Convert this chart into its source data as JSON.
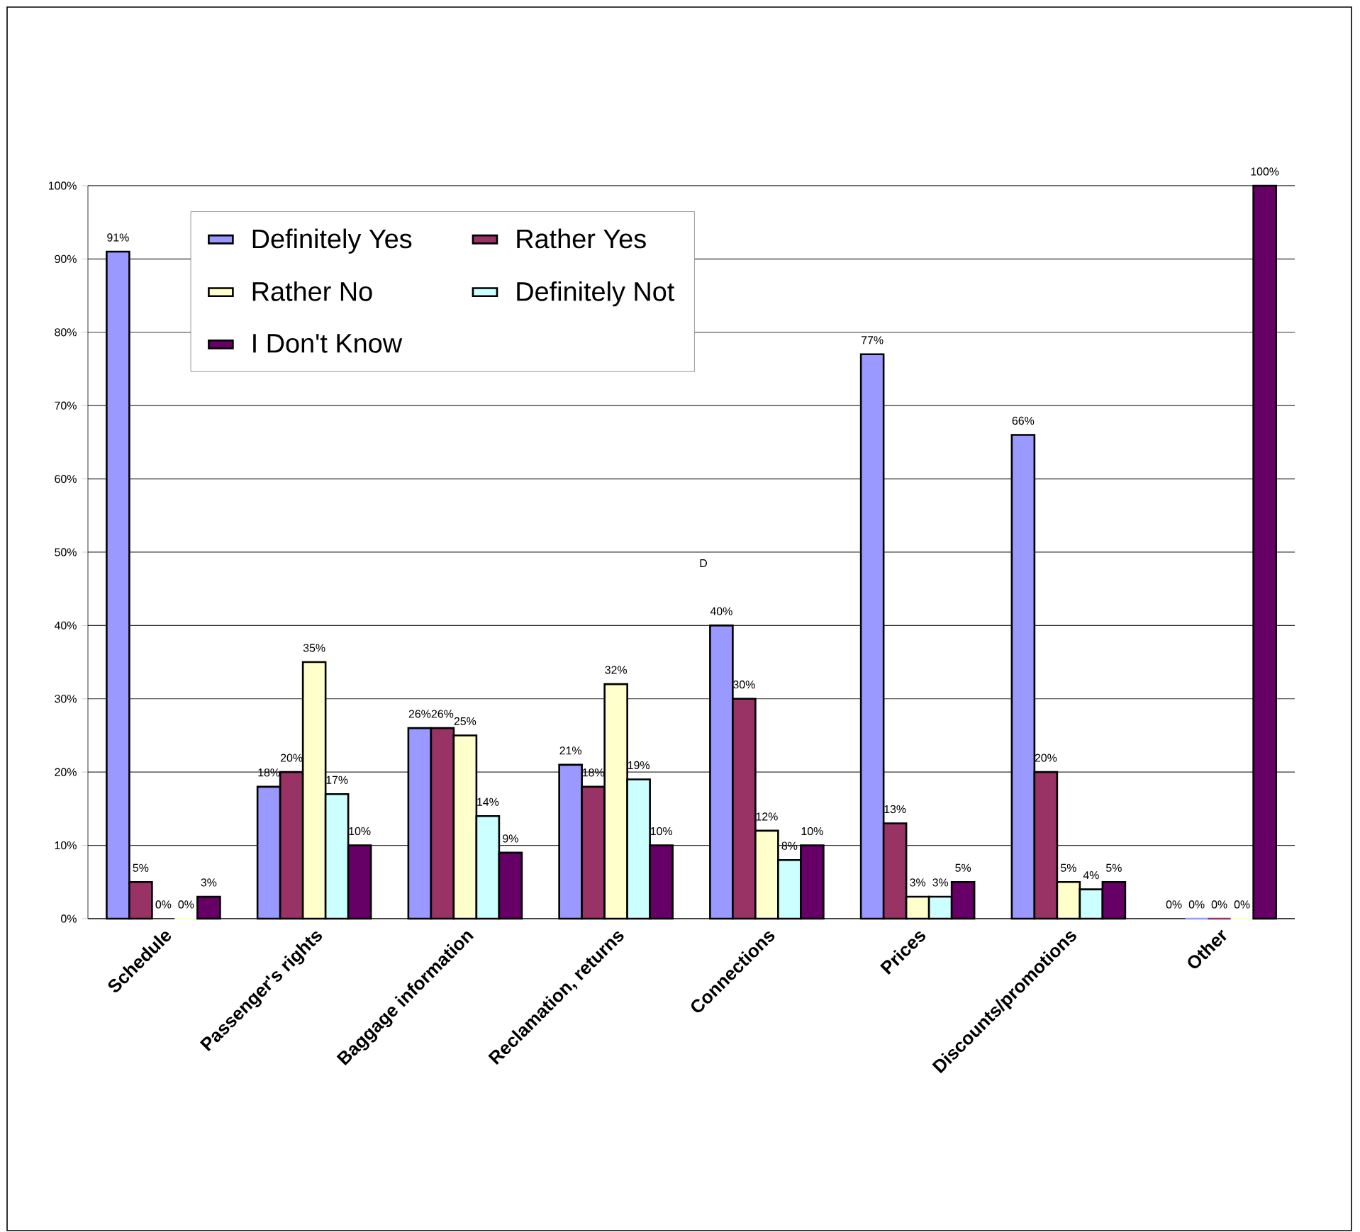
{
  "chart_data": {
    "type": "bar",
    "categories": [
      "Schedule",
      "Passenger's rights",
      "Baggage information",
      "Reclamation, returns",
      "Connections",
      "Prices",
      "Discounts/promotions",
      "Other"
    ],
    "series": [
      {
        "name": "Definitely Yes",
        "color": "#9999ff",
        "values": [
          91,
          18,
          26,
          21,
          40,
          77,
          66,
          0
        ],
        "value_labels": [
          "91%",
          "18%",
          "26%",
          "21%",
          "40%",
          "77%",
          "66%",
          "0%"
        ]
      },
      {
        "name": "Rather Yes",
        "color": "#993366",
        "values": [
          5,
          20,
          26,
          18,
          30,
          13,
          20,
          0
        ],
        "value_labels": [
          "5%",
          "20%",
          "26%",
          "18%",
          "30%",
          "13%",
          "20%",
          "0%"
        ]
      },
      {
        "name": "Rather No",
        "color": "#ffffcc",
        "values": [
          0,
          35,
          25,
          32,
          12,
          3,
          5,
          0
        ],
        "value_labels": [
          "0%",
          "35%",
          "25%",
          "32%",
          "12%",
          "3%",
          "5%",
          "0%"
        ]
      },
      {
        "name": "Definitely Not",
        "color": "#ccffff",
        "values": [
          0,
          17,
          14,
          19,
          8,
          3,
          4,
          0
        ],
        "value_labels": [
          "0%",
          "17%",
          "14%",
          "19%",
          "8%",
          "3%",
          "4%",
          "0%"
        ]
      },
      {
        "name": "I Don't Know",
        "color": "#660066",
        "values": [
          3,
          10,
          9,
          10,
          10,
          5,
          5,
          100
        ],
        "value_labels": [
          "3%",
          "10%",
          "9%",
          "10%",
          "10%",
          "5%",
          "5%",
          "100%"
        ]
      }
    ],
    "ylim": [
      0,
      100
    ],
    "yticks": [
      {
        "value": 0,
        "label": "0%"
      },
      {
        "value": 10,
        "label": "10%"
      },
      {
        "value": 20,
        "label": "20%"
      },
      {
        "value": 30,
        "label": "30%"
      },
      {
        "value": 40,
        "label": "40%"
      },
      {
        "value": 50,
        "label": "50%"
      },
      {
        "value": 60,
        "label": "60%"
      },
      {
        "value": 70,
        "label": "70%"
      },
      {
        "value": 80,
        "label": "80%"
      },
      {
        "value": 90,
        "label": "90%"
      },
      {
        "value": 100,
        "label": "100%"
      }
    ],
    "grid": "y",
    "legend": "top left",
    "annotations": [
      "D"
    ]
  }
}
